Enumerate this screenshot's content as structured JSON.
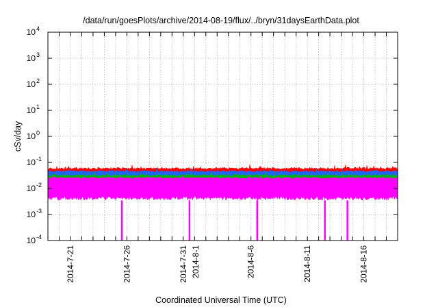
{
  "chart_data": {
    "type": "area",
    "title": "/data/run/goesPlots/archive/2014-08-19/flux/../bryn/31daysEarthData.plot",
    "xlabel": "Coordinated Universal Time (UTC)",
    "ylabel": "cSv/day",
    "yscale": "log",
    "ylim": [
      0.0001,
      10000
    ],
    "xlim": [
      "2014-07-19",
      "2014-08-19"
    ],
    "grid": true,
    "legend": "none",
    "x_ticks": [
      "2014-7-21",
      "2014-7-26",
      "2014-7-31",
      "2014-8-1",
      "2014-8-6",
      "2014-8-11",
      "2014-8-16"
    ],
    "x_tick_dates": [
      "2014-07-21",
      "2014-07-26",
      "2014-07-31",
      "2014-08-01",
      "2014-08-06",
      "2014-08-11",
      "2014-08-16"
    ],
    "y_ticks": [
      {
        "base": "10",
        "exp": "-4",
        "value": 0.0001
      },
      {
        "base": "10",
        "exp": "-3",
        "value": 0.001
      },
      {
        "base": "10",
        "exp": "-2",
        "value": 0.01
      },
      {
        "base": "10",
        "exp": "-1",
        "value": 0.1
      },
      {
        "base": "10",
        "exp": "0",
        "value": 1
      },
      {
        "base": "10",
        "exp": "1",
        "value": 10
      },
      {
        "base": "10",
        "exp": "2",
        "value": 100
      },
      {
        "base": "10",
        "exp": "3",
        "value": 1000
      },
      {
        "base": "10",
        "exp": "4",
        "value": 10000
      }
    ],
    "series": [
      {
        "color": "#ff0000",
        "typical_range": [
          0.01,
          0.065
        ],
        "peak": 0.09
      },
      {
        "color": "#1e64ff",
        "typical_range": [
          0.009,
          0.05
        ],
        "peak": 0.07
      },
      {
        "color": "#00b400",
        "typical_range": [
          0.008,
          0.035
        ],
        "peak": 0.045
      },
      {
        "color": "#ff00ff",
        "typical_range": [
          0.0035,
          0.028
        ],
        "peak": 0.032,
        "dropouts": [
          {
            "date": "2014-07-25",
            "value": 0.0001
          },
          {
            "date": "2014-07-31",
            "value": 0.0001
          },
          {
            "date": "2014-08-06",
            "value": 0.0001
          },
          {
            "date": "2014-08-12",
            "value": 0.0001
          },
          {
            "date": "2014-08-14",
            "value": 0.0001
          }
        ]
      }
    ]
  }
}
